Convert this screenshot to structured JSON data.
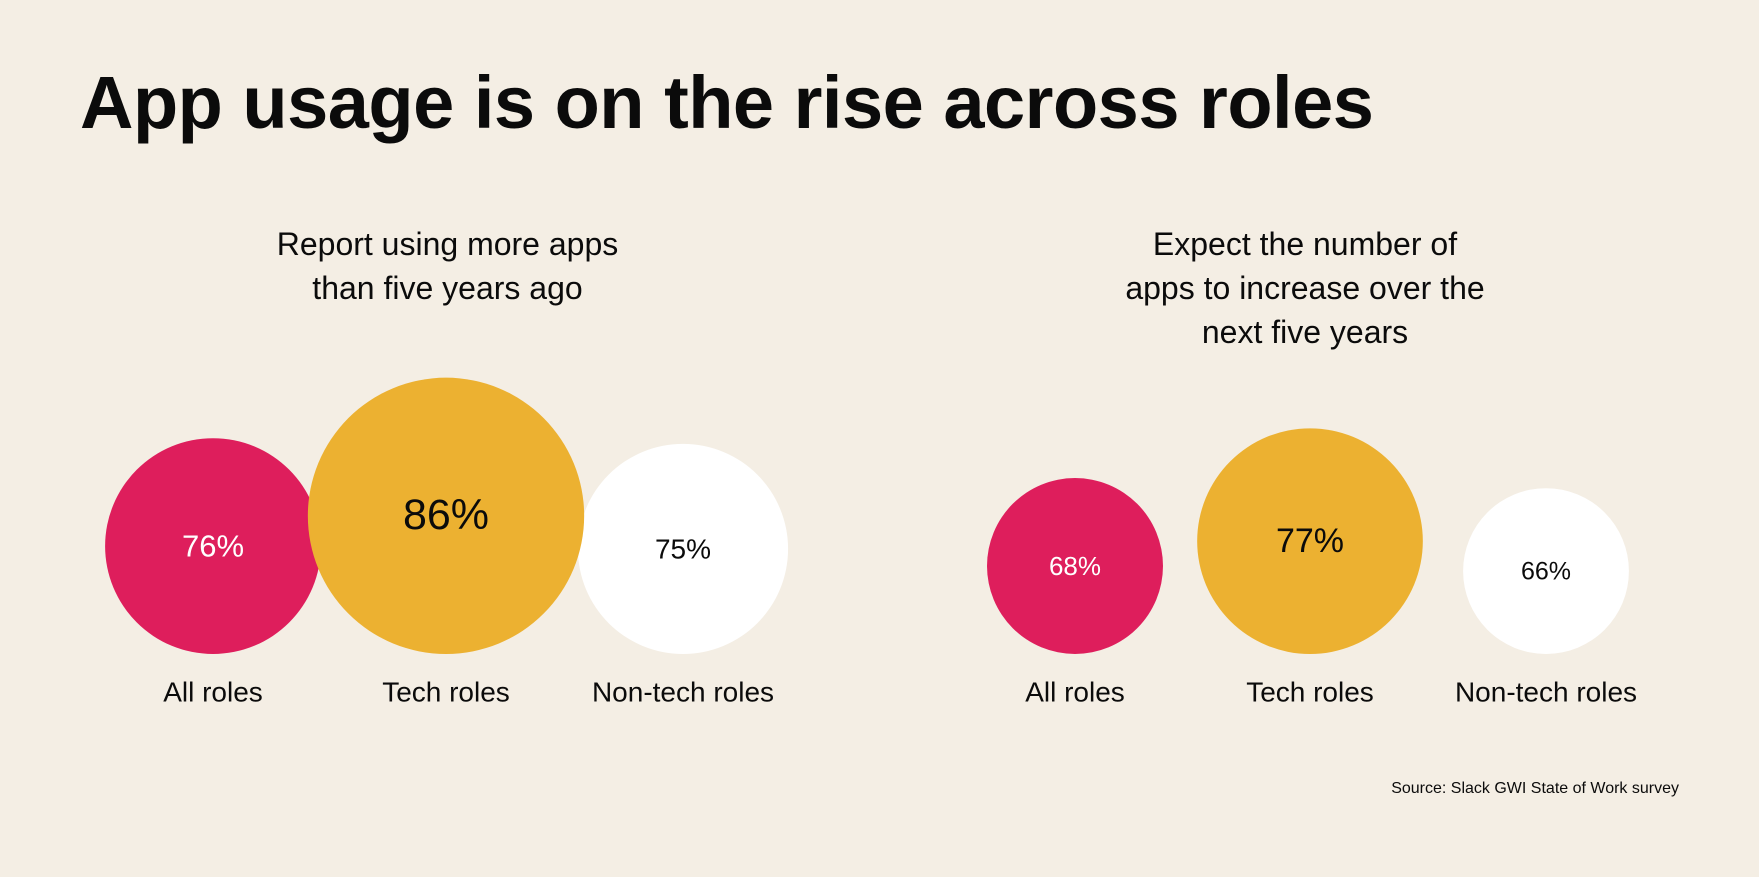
{
  "title": "App usage is on the rise across roles",
  "source": "Source: Slack GWI State of Work survey",
  "colors": {
    "background": "#f4eee4",
    "all_roles": "#de1e5c",
    "tech_roles": "#ecb131",
    "non_tech_roles": "#ffffff",
    "text_dark": "#0b0b0b",
    "text_light": "#ffffff"
  },
  "chart_data": [
    {
      "type": "bubble",
      "title": "Report using more apps than five years ago",
      "title_lines": [
        "Report using more apps",
        "than five years ago"
      ],
      "categories": [
        "All roles",
        "Tech roles",
        "Non-tech roles"
      ],
      "values": [
        76,
        86,
        75
      ],
      "unit": "%",
      "value_labels": [
        "76%",
        "86%",
        "75%"
      ],
      "colors": [
        "#de1e5c",
        "#ecb131",
        "#ffffff"
      ]
    },
    {
      "type": "bubble",
      "title": "Expect the number of apps to increase over the next five years",
      "title_lines": [
        "Expect the number of",
        "apps to increase over the",
        "next five years"
      ],
      "categories": [
        "All roles",
        "Tech roles",
        "Non-tech roles"
      ],
      "values": [
        68,
        77,
        66
      ],
      "unit": "%",
      "value_labels": [
        "68%",
        "77%",
        "66%"
      ],
      "colors": [
        "#de1e5c",
        "#ecb131",
        "#ffffff"
      ]
    }
  ]
}
